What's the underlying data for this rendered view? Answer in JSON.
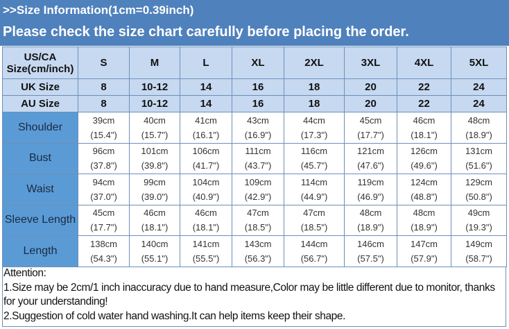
{
  "header": {
    "line1": ">>Size Information(1cm=0.39inch)",
    "line2": "Please check the size chart carefully before placing the order."
  },
  "table": {
    "corner_label": "US/CA Size(cm/inch)",
    "sizes": [
      "S",
      "M",
      "L",
      "XL",
      "2XL",
      "3XL",
      "4XL",
      "5XL"
    ],
    "uk": {
      "label": "UK Size",
      "values": [
        "8",
        "10-12",
        "14",
        "16",
        "18",
        "20",
        "22",
        "24"
      ]
    },
    "au": {
      "label": "AU Size",
      "values": [
        "8",
        "10-12",
        "14",
        "16",
        "18",
        "20",
        "22",
        "24"
      ]
    },
    "rows": [
      {
        "label": "Shoulder",
        "cm": [
          "39cm",
          "40cm",
          "41cm",
          "43cm",
          "44cm",
          "45cm",
          "46cm",
          "48cm"
        ],
        "inch": [
          "(15.4\")",
          "(15.7\")",
          "(16.1\")",
          "(16.9\")",
          "(17.3\")",
          "(17.7\")",
          "(18.1\")",
          "(18.9\")"
        ]
      },
      {
        "label": "Bust",
        "cm": [
          "96cm",
          "101cm",
          "106cm",
          "111cm",
          "116cm",
          "121cm",
          "126cm",
          "131cm"
        ],
        "inch": [
          "(37.8\")",
          "(39.8\")",
          "(41.7\")",
          "(43.7\")",
          "(45.7\")",
          "(47.6\")",
          "(49.6\")",
          "(51.6\")"
        ]
      },
      {
        "label": "Waist",
        "cm": [
          "94cm",
          "99cm",
          "104cm",
          "109cm",
          "114cm",
          "119cm",
          "124cm",
          "129cm"
        ],
        "inch": [
          "(37.0\")",
          "(39.0\")",
          "(40.9\")",
          "(42.9\")",
          "(44.9\")",
          "(46.9\")",
          "(48.8\")",
          "(50.8\")"
        ]
      },
      {
        "label": "Sleeve Length",
        "cm": [
          "45cm",
          "46cm",
          "46cm",
          "47cm",
          "47cm",
          "48cm",
          "48cm",
          "49cm"
        ],
        "inch": [
          "(17.7\")",
          "(18.1\")",
          "(18.1\")",
          "(18.5\")",
          "(18.5\")",
          "(18.9\")",
          "(18.9\")",
          "(19.3\")"
        ]
      },
      {
        "label": "Length",
        "cm": [
          "138cm",
          "140cm",
          "141cm",
          "143cm",
          "144cm",
          "146cm",
          "147cm",
          "149cm"
        ],
        "inch": [
          "(54.3\")",
          "(55.1\")",
          "(55.5\")",
          "(56.3\")",
          "(56.7\")",
          "(57.5\")",
          "(57.9\")",
          "(58.7\")"
        ]
      }
    ]
  },
  "notes": {
    "title": "Attention:",
    "items": [
      "1.Size may be 2cm/1  inch inaccuracy due to hand measure,Color may be little different due to monitor, thanks for your understanding!",
      "2.Suggestion of cold water hand washing.It  can help items keep their shape."
    ]
  },
  "colors": {
    "header_band": "#4f81bd",
    "header_cells": "#c6d9f1",
    "row_labels": "#5b9bd5"
  }
}
